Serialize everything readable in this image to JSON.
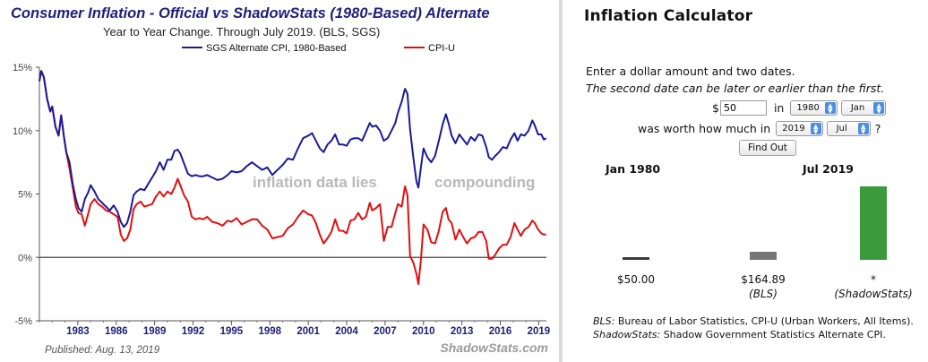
{
  "chart_data": {
    "type": "line",
    "title": "Consumer Inflation - Official vs ShadowStats (1980-Based) Alternate",
    "subtitle": "Year to Year Change. Through July 2019.   (BLS, SGS)",
    "series": [
      {
        "name": "SGS Alternate CPI, 1980-Based",
        "color": "#1a1a9a",
        "points": [
          [
            1980.0,
            13.9
          ],
          [
            1980.15,
            14.7
          ],
          [
            1980.35,
            14.2
          ],
          [
            1980.6,
            12.5
          ],
          [
            1980.85,
            11.5
          ],
          [
            1981.0,
            11.9
          ],
          [
            1981.25,
            10.3
          ],
          [
            1981.5,
            9.6
          ],
          [
            1981.7,
            11.2
          ],
          [
            1981.9,
            9.6
          ],
          [
            1982.1,
            8.3
          ],
          [
            1982.35,
            7.5
          ],
          [
            1982.6,
            5.8
          ],
          [
            1982.85,
            4.6
          ],
          [
            1983.05,
            3.9
          ],
          [
            1983.3,
            3.6
          ],
          [
            1983.55,
            4.6
          ],
          [
            1983.8,
            5.1
          ],
          [
            1984.0,
            5.7
          ],
          [
            1984.3,
            5.2
          ],
          [
            1984.6,
            4.6
          ],
          [
            1984.9,
            4.3
          ],
          [
            1985.2,
            4.0
          ],
          [
            1985.5,
            3.7
          ],
          [
            1985.8,
            4.1
          ],
          [
            1986.1,
            3.6
          ],
          [
            1986.35,
            2.8
          ],
          [
            1986.6,
            2.4
          ],
          [
            1986.85,
            2.7
          ],
          [
            1987.1,
            3.6
          ],
          [
            1987.35,
            4.9
          ],
          [
            1987.6,
            5.2
          ],
          [
            1987.9,
            5.4
          ],
          [
            1988.2,
            5.3
          ],
          [
            1988.5,
            5.8
          ],
          [
            1988.8,
            6.3
          ],
          [
            1989.1,
            6.8
          ],
          [
            1989.4,
            7.5
          ],
          [
            1989.7,
            6.9
          ],
          [
            1990.0,
            7.7
          ],
          [
            1990.3,
            7.7
          ],
          [
            1990.55,
            8.4
          ],
          [
            1990.8,
            8.5
          ],
          [
            1991.0,
            8.2
          ],
          [
            1991.3,
            7.4
          ],
          [
            1991.6,
            6.6
          ],
          [
            1991.9,
            6.4
          ],
          [
            1992.2,
            6.5
          ],
          [
            1992.5,
            6.4
          ],
          [
            1992.8,
            6.4
          ],
          [
            1993.1,
            6.5
          ],
          [
            1993.5,
            6.3
          ],
          [
            1993.9,
            6.1
          ],
          [
            1994.3,
            6.2
          ],
          [
            1994.7,
            6.5
          ],
          [
            1995.0,
            6.8
          ],
          [
            1995.4,
            6.7
          ],
          [
            1995.8,
            6.8
          ],
          [
            1996.2,
            7.2
          ],
          [
            1996.6,
            7.5
          ],
          [
            1997.0,
            7.2
          ],
          [
            1997.4,
            6.9
          ],
          [
            1997.8,
            7.1
          ],
          [
            1998.2,
            6.5
          ],
          [
            1998.6,
            6.9
          ],
          [
            1999.0,
            7.3
          ],
          [
            1999.4,
            7.8
          ],
          [
            1999.8,
            7.7
          ],
          [
            2000.2,
            8.6
          ],
          [
            2000.6,
            9.4
          ],
          [
            2001.0,
            9.6
          ],
          [
            2001.3,
            9.8
          ],
          [
            2001.6,
            9.2
          ],
          [
            2001.9,
            8.6
          ],
          [
            2002.2,
            8.3
          ],
          [
            2002.5,
            8.9
          ],
          [
            2002.8,
            9.2
          ],
          [
            2003.1,
            9.7
          ],
          [
            2003.4,
            8.9
          ],
          [
            2003.7,
            8.9
          ],
          [
            2004.0,
            8.8
          ],
          [
            2004.3,
            9.3
          ],
          [
            2004.6,
            9.4
          ],
          [
            2004.9,
            9.4
          ],
          [
            2005.2,
            9.2
          ],
          [
            2005.5,
            9.9
          ],
          [
            2005.8,
            10.6
          ],
          [
            2006.0,
            10.3
          ],
          [
            2006.3,
            10.4
          ],
          [
            2006.6,
            10.0
          ],
          [
            2006.9,
            9.2
          ],
          [
            2007.2,
            9.4
          ],
          [
            2007.5,
            10.0
          ],
          [
            2007.8,
            10.6
          ],
          [
            2008.0,
            11.4
          ],
          [
            2008.3,
            12.3
          ],
          [
            2008.55,
            13.3
          ],
          [
            2008.75,
            12.9
          ],
          [
            2008.95,
            10.1
          ],
          [
            2009.2,
            7.9
          ],
          [
            2009.45,
            6.0
          ],
          [
            2009.6,
            5.5
          ],
          [
            2009.8,
            7.1
          ],
          [
            2010.0,
            8.6
          ],
          [
            2010.3,
            7.9
          ],
          [
            2010.6,
            7.5
          ],
          [
            2010.9,
            8.0
          ],
          [
            2011.2,
            9.2
          ],
          [
            2011.5,
            10.5
          ],
          [
            2011.75,
            11.3
          ],
          [
            2011.95,
            10.6
          ],
          [
            2012.2,
            9.6
          ],
          [
            2012.5,
            9.0
          ],
          [
            2012.8,
            9.7
          ],
          [
            2013.1,
            9.3
          ],
          [
            2013.4,
            8.9
          ],
          [
            2013.7,
            9.5
          ],
          [
            2014.0,
            9.2
          ],
          [
            2014.3,
            9.7
          ],
          [
            2014.6,
            9.6
          ],
          [
            2014.9,
            8.7
          ],
          [
            2015.1,
            7.9
          ],
          [
            2015.35,
            7.7
          ],
          [
            2015.6,
            8.0
          ],
          [
            2015.9,
            8.3
          ],
          [
            2016.2,
            8.7
          ],
          [
            2016.5,
            8.6
          ],
          [
            2016.8,
            9.3
          ],
          [
            2017.1,
            9.8
          ],
          [
            2017.35,
            9.2
          ],
          [
            2017.6,
            9.7
          ],
          [
            2017.9,
            9.6
          ],
          [
            2018.2,
            10.0
          ],
          [
            2018.5,
            10.8
          ],
          [
            2018.7,
            10.4
          ],
          [
            2018.95,
            9.7
          ],
          [
            2019.2,
            9.7
          ],
          [
            2019.4,
            9.3
          ],
          [
            2019.58,
            9.4
          ]
        ]
      },
      {
        "name": "CPI-U",
        "color": "#e01010",
        "points": [
          [
            1980.0,
            13.9
          ],
          [
            1980.15,
            14.7
          ],
          [
            1980.35,
            14.2
          ],
          [
            1980.6,
            12.5
          ],
          [
            1980.85,
            11.5
          ],
          [
            1981.0,
            11.9
          ],
          [
            1981.25,
            10.3
          ],
          [
            1981.5,
            9.6
          ],
          [
            1981.7,
            11.2
          ],
          [
            1981.9,
            9.6
          ],
          [
            1982.1,
            8.3
          ],
          [
            1982.35,
            7.0
          ],
          [
            1982.6,
            5.5
          ],
          [
            1982.85,
            4.0
          ],
          [
            1983.05,
            3.5
          ],
          [
            1983.3,
            3.4
          ],
          [
            1983.55,
            2.5
          ],
          [
            1983.8,
            3.4
          ],
          [
            1984.0,
            4.2
          ],
          [
            1984.3,
            4.6
          ],
          [
            1984.6,
            4.2
          ],
          [
            1984.9,
            4.0
          ],
          [
            1985.2,
            3.7
          ],
          [
            1985.5,
            3.6
          ],
          [
            1985.8,
            3.4
          ],
          [
            1986.1,
            3.2
          ],
          [
            1986.35,
            1.8
          ],
          [
            1986.6,
            1.3
          ],
          [
            1986.85,
            1.5
          ],
          [
            1987.1,
            2.2
          ],
          [
            1987.35,
            3.8
          ],
          [
            1987.6,
            4.2
          ],
          [
            1987.9,
            4.4
          ],
          [
            1988.2,
            4.0
          ],
          [
            1988.5,
            4.1
          ],
          [
            1988.8,
            4.2
          ],
          [
            1989.1,
            4.8
          ],
          [
            1989.4,
            5.2
          ],
          [
            1989.7,
            4.8
          ],
          [
            1990.0,
            5.2
          ],
          [
            1990.3,
            5.0
          ],
          [
            1990.55,
            5.5
          ],
          [
            1990.8,
            6.2
          ],
          [
            1991.0,
            5.7
          ],
          [
            1991.3,
            4.9
          ],
          [
            1991.6,
            4.4
          ],
          [
            1991.9,
            3.2
          ],
          [
            1992.2,
            3.0
          ],
          [
            1992.5,
            3.1
          ],
          [
            1992.8,
            3.0
          ],
          [
            1993.1,
            3.2
          ],
          [
            1993.5,
            2.8
          ],
          [
            1993.9,
            2.7
          ],
          [
            1994.3,
            2.5
          ],
          [
            1994.7,
            2.9
          ],
          [
            1995.0,
            2.8
          ],
          [
            1995.4,
            3.1
          ],
          [
            1995.8,
            2.6
          ],
          [
            1996.2,
            2.8
          ],
          [
            1996.6,
            3.0
          ],
          [
            1997.0,
            3.0
          ],
          [
            1997.4,
            2.5
          ],
          [
            1997.8,
            2.2
          ],
          [
            1998.2,
            1.5
          ],
          [
            1998.6,
            1.6
          ],
          [
            1999.0,
            1.7
          ],
          [
            1999.4,
            2.3
          ],
          [
            1999.8,
            2.6
          ],
          [
            2000.2,
            3.2
          ],
          [
            2000.6,
            3.7
          ],
          [
            2001.0,
            3.4
          ],
          [
            2001.3,
            3.3
          ],
          [
            2001.6,
            2.7
          ],
          [
            2001.9,
            1.8
          ],
          [
            2002.2,
            1.1
          ],
          [
            2002.5,
            1.5
          ],
          [
            2002.8,
            2.0
          ],
          [
            2003.1,
            3.0
          ],
          [
            2003.4,
            2.1
          ],
          [
            2003.7,
            2.1
          ],
          [
            2004.0,
            1.9
          ],
          [
            2004.3,
            2.9
          ],
          [
            2004.6,
            3.0
          ],
          [
            2004.9,
            3.5
          ],
          [
            2005.2,
            3.0
          ],
          [
            2005.5,
            3.2
          ],
          [
            2005.8,
            4.3
          ],
          [
            2006.0,
            3.7
          ],
          [
            2006.3,
            3.9
          ],
          [
            2006.6,
            4.2
          ],
          [
            2006.9,
            1.3
          ],
          [
            2007.2,
            2.4
          ],
          [
            2007.5,
            2.4
          ],
          [
            2007.8,
            3.5
          ],
          [
            2008.0,
            4.2
          ],
          [
            2008.3,
            4.0
          ],
          [
            2008.55,
            5.6
          ],
          [
            2008.75,
            4.9
          ],
          [
            2008.95,
            0.1
          ],
          [
            2009.2,
            -0.4
          ],
          [
            2009.45,
            -1.3
          ],
          [
            2009.6,
            -2.1
          ],
          [
            2009.8,
            -0.2
          ],
          [
            2010.0,
            2.6
          ],
          [
            2010.3,
            2.2
          ],
          [
            2010.6,
            1.2
          ],
          [
            2010.9,
            1.1
          ],
          [
            2011.2,
            2.1
          ],
          [
            2011.5,
            3.6
          ],
          [
            2011.75,
            3.9
          ],
          [
            2011.95,
            3.0
          ],
          [
            2012.2,
            2.7
          ],
          [
            2012.5,
            1.4
          ],
          [
            2012.8,
            2.2
          ],
          [
            2013.1,
            1.6
          ],
          [
            2013.4,
            1.1
          ],
          [
            2013.7,
            1.5
          ],
          [
            2014.0,
            1.6
          ],
          [
            2014.3,
            2.0
          ],
          [
            2014.6,
            2.0
          ],
          [
            2014.9,
            1.3
          ],
          [
            2015.1,
            -0.1
          ],
          [
            2015.35,
            -0.1
          ],
          [
            2015.6,
            0.2
          ],
          [
            2015.9,
            0.7
          ],
          [
            2016.2,
            1.0
          ],
          [
            2016.5,
            1.0
          ],
          [
            2016.8,
            1.6
          ],
          [
            2017.1,
            2.7
          ],
          [
            2017.35,
            2.2
          ],
          [
            2017.6,
            1.7
          ],
          [
            2017.9,
            2.2
          ],
          [
            2018.2,
            2.4
          ],
          [
            2018.5,
            2.9
          ],
          [
            2018.7,
            2.7
          ],
          [
            2018.95,
            2.2
          ],
          [
            2019.2,
            1.9
          ],
          [
            2019.4,
            1.8
          ],
          [
            2019.58,
            1.8
          ]
        ]
      }
    ],
    "x_ticks": [
      "1983",
      "1986",
      "1989",
      "1992",
      "1995",
      "1998",
      "2001",
      "2004",
      "2007",
      "2010",
      "2013",
      "2016",
      "2019"
    ],
    "y_ticks": [
      "15%",
      "10%",
      "5%",
      "0%",
      "-5%"
    ],
    "xlim": [
      1980,
      2019.6
    ],
    "ylim": [
      -5,
      15
    ],
    "grid": false,
    "legend_position": "top-center",
    "annotations": [
      "inflation data lies",
      "compounding"
    ],
    "published": "Published: Aug. 13, 2019",
    "source": "ShadowStats.com"
  },
  "calculator": {
    "title": "Inflation Calculator",
    "intro": "Enter a dollar amount and two dates.",
    "intro_note": "The second date can be later or earlier than the first.",
    "dollar_sign": "$",
    "amount_value": "50",
    "in_label": "in",
    "start_year": "1980",
    "start_month": "Jan",
    "worth_label": "was worth how much in",
    "end_year": "2019",
    "end_month": "Jul",
    "question_mark": "?",
    "find_out_label": "Find Out",
    "start_header": "Jan 1980",
    "end_header": "Jul 2019",
    "bars": [
      {
        "label": "$50.00",
        "source": "",
        "value": 50.0,
        "color": "#3a3a3a"
      },
      {
        "label": "$164.89",
        "source": "(BLS)",
        "value": 164.89,
        "color": "#777777"
      },
      {
        "label": "*",
        "source": "(ShadowStats)",
        "value": 1500.0,
        "color": "#3b9b3b"
      }
    ],
    "note_bls_key": "BLS:",
    "note_bls_text": " Bureau of Labor Statistics, CPI-U (Urban Workers, All Items).",
    "note_sgs_key": "ShadowStats:",
    "note_sgs_text": " Shadow Government Statistics Alternate CPI."
  }
}
